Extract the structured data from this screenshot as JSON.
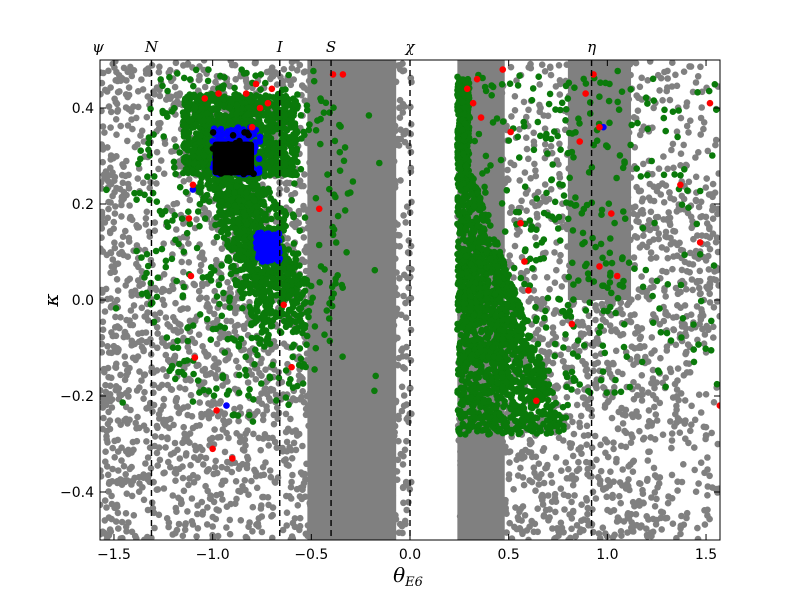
{
  "chart_data": {
    "type": "scatter",
    "title": "",
    "xlabel": "θ",
    "xlabel_sub": "E6",
    "ylabel": "κ",
    "xlim": [
      -1.5708,
      1.5708
    ],
    "ylim": [
      -0.5,
      0.5
    ],
    "x_ticks": [
      -1.5,
      -1.0,
      -0.5,
      0.0,
      0.5,
      1.0,
      1.5
    ],
    "x_tick_labels": [
      "−1.5",
      "−1.0",
      "−0.5",
      "0.0",
      "0.5",
      "1.0",
      "1.5"
    ],
    "y_ticks": [
      -0.4,
      -0.2,
      0.0,
      0.2,
      0.4
    ],
    "y_tick_labels": [
      "−0.4",
      "−0.2",
      "0.0",
      "0.2",
      "0.4"
    ],
    "grid": false,
    "legend": "none",
    "vertical_lines": [
      {
        "label": "N",
        "x": -1.31
      },
      {
        "label": "I",
        "x": -0.66
      },
      {
        "label": "S",
        "x": -0.4
      },
      {
        "label": "χ",
        "x": 0.0
      },
      {
        "label": "η",
        "x": 0.92
      }
    ],
    "corner_label": "ψ",
    "colors": {
      "background_points": "#808080",
      "green_points": "#0a7a0a",
      "red_points": "#ff0000",
      "blue_points": "#0000ff",
      "black_region": "#000000",
      "lines": "#000000"
    },
    "regions": {
      "solid_gray_bands": [
        {
          "x": [
            -0.52,
            -0.07
          ],
          "y": [
            -0.5,
            0.5
          ]
        },
        {
          "x": [
            0.24,
            0.48
          ],
          "y": [
            -0.5,
            0.5
          ]
        },
        {
          "x": [
            0.8,
            1.12
          ],
          "y": [
            0.0,
            0.5
          ]
        }
      ],
      "white_band": {
        "x": [
          0.0,
          0.24
        ],
        "y": [
          -0.5,
          0.5
        ]
      },
      "black_region": {
        "x": [
          -1.0,
          -0.79
        ],
        "y": [
          0.26,
          0.33
        ]
      },
      "blue_clusters": [
        {
          "x": [
            -1.0,
            -0.76
          ],
          "y": [
            0.26,
            0.36
          ]
        },
        {
          "x": [
            -0.78,
            -0.66
          ],
          "y": [
            0.08,
            0.14
          ]
        }
      ],
      "green_main": {
        "x": [
          -1.2,
          -0.5
        ],
        "y": [
          -0.1,
          0.43
        ]
      },
      "green_right": {
        "x": [
          0.24,
          0.9
        ],
        "y": [
          -0.28,
          0.48
        ]
      },
      "green_far_right": {
        "x": [
          0.85,
          1.57
        ],
        "y": [
          -0.2,
          0.45
        ]
      }
    },
    "series": [
      {
        "name": "",
        "color": "gray",
        "points": "background-scatter"
      },
      {
        "name": "",
        "color": "green",
        "points": "clusters"
      },
      {
        "name": "",
        "color": "red",
        "values": [
          [
            -0.97,
            0.43
          ],
          [
            -1.04,
            0.42
          ],
          [
            -0.76,
            0.4
          ],
          [
            -0.83,
            0.43
          ],
          [
            -0.72,
            0.41
          ],
          [
            -0.39,
            0.47
          ],
          [
            -0.34,
            0.47
          ],
          [
            -0.7,
            0.44
          ],
          [
            -0.78,
            0.45
          ],
          [
            -0.8,
            0.36
          ],
          [
            -1.1,
            0.24
          ],
          [
            -1.12,
            0.17
          ],
          [
            -1.11,
            0.05
          ],
          [
            -0.64,
            -0.01
          ],
          [
            -1.09,
            -0.12
          ],
          [
            -0.6,
            -0.14
          ],
          [
            -0.9,
            -0.33
          ],
          [
            -1.0,
            -0.31
          ],
          [
            -0.98,
            -0.23
          ],
          [
            -0.46,
            0.19
          ],
          [
            0.29,
            0.44
          ],
          [
            0.32,
            0.41
          ],
          [
            0.34,
            0.46
          ],
          [
            0.36,
            0.38
          ],
          [
            0.56,
            0.16
          ],
          [
            0.58,
            0.08
          ],
          [
            0.6,
            0.02
          ],
          [
            0.64,
            -0.21
          ],
          [
            0.82,
            -0.05
          ],
          [
            0.86,
            0.33
          ],
          [
            0.89,
            0.43
          ],
          [
            0.93,
            0.47
          ],
          [
            0.96,
            0.36
          ],
          [
            0.96,
            0.07
          ],
          [
            1.02,
            0.18
          ],
          [
            1.05,
            0.05
          ],
          [
            1.37,
            0.24
          ],
          [
            1.47,
            0.12
          ],
          [
            1.52,
            0.41
          ],
          [
            1.57,
            -0.22
          ],
          [
            0.51,
            0.35
          ],
          [
            0.47,
            0.48
          ]
        ]
      },
      {
        "name": "",
        "color": "blue",
        "points": "clusters"
      },
      {
        "name": "",
        "color": "black",
        "points": "dense-block"
      }
    ]
  }
}
